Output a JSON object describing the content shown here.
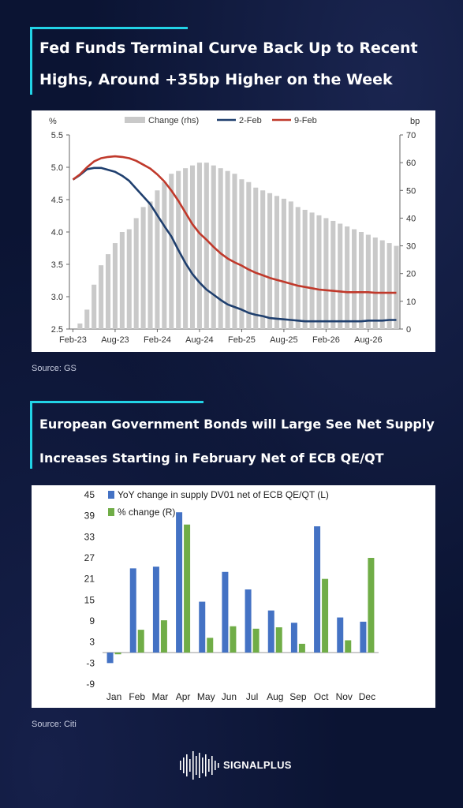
{
  "chart1": {
    "title_line1": "Fed Funds Terminal Curve Back Up to Recent",
    "title_line2": "Highs, Around +35bp Higher on the Week",
    "source": "Source: GS",
    "chart_data": {
      "type": "line",
      "left_unit": "%",
      "right_unit": "bp",
      "ylim_left": [
        2.5,
        5.5
      ],
      "ylim_right": [
        0,
        70
      ],
      "left_ticks": [
        "5.5",
        "5.0",
        "4.5",
        "4.0",
        "3.5",
        "3.0",
        "2.5"
      ],
      "right_ticks": [
        "70",
        "60",
        "50",
        "40",
        "30",
        "20",
        "10",
        "0"
      ],
      "x_ticks": [
        "Feb-23",
        "Aug-23",
        "Feb-24",
        "Aug-24",
        "Feb-25",
        "Aug-25",
        "Feb-26",
        "Aug-26"
      ],
      "x_ticks_index": [
        0,
        6,
        12,
        18,
        24,
        30,
        36,
        42
      ],
      "x": [
        "Feb-23",
        "Mar-23",
        "Apr-23",
        "May-23",
        "Jun-23",
        "Jul-23",
        "Aug-23",
        "Sep-23",
        "Oct-23",
        "Nov-23",
        "Dec-23",
        "Jan-24",
        "Feb-24",
        "Mar-24",
        "Apr-24",
        "May-24",
        "Jun-24",
        "Jul-24",
        "Aug-24",
        "Sep-24",
        "Oct-24",
        "Nov-24",
        "Dec-24",
        "Jan-25",
        "Feb-25",
        "Mar-25",
        "Apr-25",
        "May-25",
        "Jun-25",
        "Jul-25",
        "Aug-25",
        "Sep-25",
        "Oct-25",
        "Nov-25",
        "Dec-25",
        "Jan-26",
        "Feb-26",
        "Mar-26",
        "Apr-26",
        "May-26",
        "Jun-26",
        "Jul-26",
        "Aug-26",
        "Sep-26",
        "Oct-26",
        "Nov-26",
        "Dec-26"
      ],
      "series": [
        {
          "name": "Change (rhs)",
          "kind": "bar",
          "axis": "right",
          "color": "#c9c9c9",
          "values": [
            0,
            2,
            7,
            16,
            23,
            27,
            31,
            35,
            36,
            40,
            44,
            46,
            50,
            53,
            56,
            57,
            58,
            59,
            60,
            60,
            59,
            58,
            57,
            56,
            54,
            53,
            51,
            50,
            49,
            48,
            47,
            46,
            44,
            43,
            42,
            41,
            40,
            39,
            38,
            37,
            36,
            35,
            34,
            33,
            32,
            31,
            30
          ]
        },
        {
          "name": "2-Feb",
          "kind": "line",
          "axis": "left",
          "color": "#1f3f6e",
          "values": [
            4.81,
            4.88,
            4.97,
            4.99,
            4.99,
            4.96,
            4.93,
            4.87,
            4.79,
            4.67,
            4.55,
            4.43,
            4.26,
            4.09,
            3.93,
            3.72,
            3.52,
            3.35,
            3.22,
            3.11,
            3.03,
            2.95,
            2.88,
            2.84,
            2.8,
            2.75,
            2.72,
            2.7,
            2.67,
            2.66,
            2.65,
            2.64,
            2.63,
            2.62,
            2.62,
            2.62,
            2.62,
            2.62,
            2.62,
            2.62,
            2.62,
            2.62,
            2.63,
            2.63,
            2.63,
            2.64,
            2.64
          ]
        },
        {
          "name": "9-Feb",
          "kind": "line",
          "axis": "left",
          "color": "#c0392b",
          "values": [
            4.81,
            4.89,
            5.0,
            5.09,
            5.14,
            5.16,
            5.17,
            5.16,
            5.14,
            5.1,
            5.04,
            4.98,
            4.89,
            4.78,
            4.64,
            4.48,
            4.3,
            4.12,
            3.98,
            3.88,
            3.77,
            3.67,
            3.59,
            3.53,
            3.48,
            3.42,
            3.37,
            3.33,
            3.29,
            3.26,
            3.23,
            3.2,
            3.17,
            3.15,
            3.13,
            3.11,
            3.1,
            3.09,
            3.08,
            3.07,
            3.07,
            3.07,
            3.07,
            3.06,
            3.06,
            3.06,
            3.06
          ]
        }
      ],
      "legend": [
        "Change (rhs)",
        "2-Feb",
        "9-Feb"
      ],
      "legend_position": "top"
    }
  },
  "chart2": {
    "title_line1": "European Government Bonds will Large See Net Supply",
    "title_line2": "Increases Starting in February Net of ECB QE/QT",
    "source": "Source: Citi",
    "chart_data": {
      "type": "bar",
      "categories": [
        "Jan",
        "Feb",
        "Mar",
        "Apr",
        "May",
        "Jun",
        "Jul",
        "Aug",
        "Sep",
        "Oct",
        "Nov",
        "Dec"
      ],
      "ylim": [
        -9,
        45
      ],
      "y_ticks": [
        "45",
        "39",
        "33",
        "27",
        "21",
        "15",
        "9",
        "3",
        "-3",
        "-9"
      ],
      "series": [
        {
          "name": "YoY change in supply DV01 net of ECB QE/QT (L)",
          "color": "#4472c4",
          "values": [
            -3,
            24,
            24.5,
            40,
            14.5,
            23,
            18,
            12,
            8.5,
            36,
            10,
            8.8
          ]
        },
        {
          "name": "% change (R)",
          "color": "#70ad47",
          "values": [
            -0.5,
            6.5,
            9.2,
            36.5,
            4.2,
            7.5,
            6.8,
            7.2,
            2.5,
            21,
            3.5,
            27
          ]
        }
      ],
      "legend_position": "top-left"
    }
  },
  "brand": {
    "name": "SIGNALPLUS"
  },
  "colors": {
    "background": "#0b1433",
    "accent": "#22d3e6"
  }
}
